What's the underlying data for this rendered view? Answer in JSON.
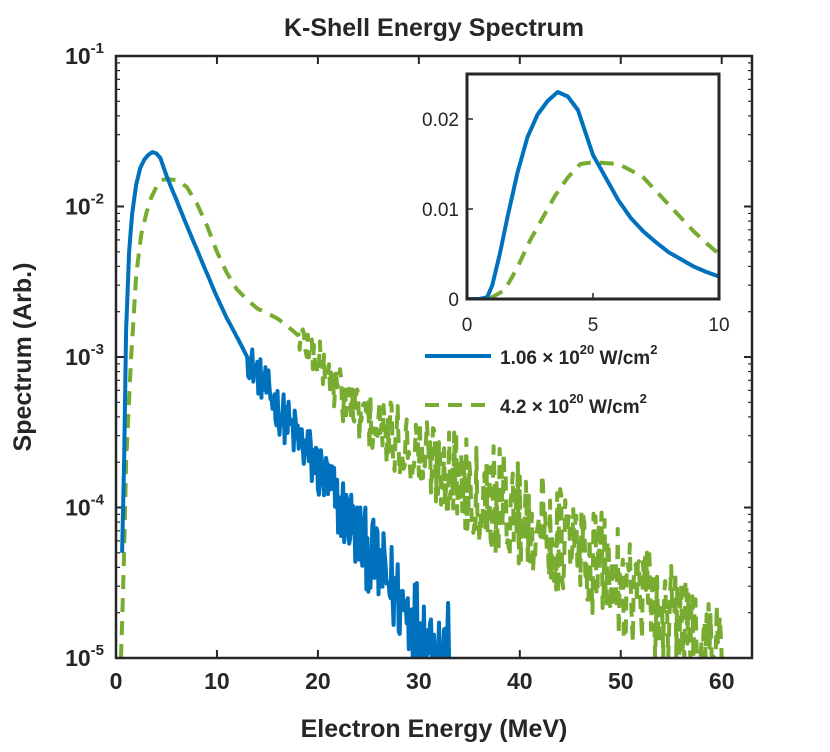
{
  "chart_data": [
    {
      "type": "line",
      "title": "K-Shell Energy Spectrum",
      "xlabel": "Electron Energy (MeV)",
      "ylabel": "Spectrum (Arb.)",
      "yscale": "log",
      "xlim": [
        0,
        63
      ],
      "ylim": [
        1e-05,
        0.1
      ],
      "xticks": [
        0,
        10,
        20,
        30,
        40,
        50,
        60
      ],
      "xtick_labels": [
        "0",
        "10",
        "20",
        "30",
        "40",
        "50",
        "60"
      ],
      "ytick_labels": [
        {
          "base": "10",
          "exp": "-1"
        },
        {
          "base": "10",
          "exp": "-2"
        },
        {
          "base": "10",
          "exp": "-3"
        },
        {
          "base": "10",
          "exp": "-4"
        },
        {
          "base": "10",
          "exp": "-5"
        }
      ],
      "ytick_values": [
        0.1,
        0.01,
        0.001,
        0.0001,
        1e-05
      ],
      "legend_position": "top-right",
      "series": [
        {
          "name": "1.06 × 10^20 W/cm^2",
          "legend_parts": {
            "prefix": "1.06 × 10",
            "exp1": "20",
            "mid": " W/cm",
            "exp2": "2"
          },
          "color": "#0072BD",
          "style": "solid",
          "x": [
            0.6,
            0.8,
            1.0,
            1.3,
            1.6,
            2.0,
            2.4,
            2.8,
            3.2,
            3.6,
            4.0,
            4.4,
            5.0,
            6.0,
            7.0,
            8.0,
            9.0,
            10.0,
            11.0,
            12.0,
            13.0,
            14.0,
            15.0,
            16.0,
            17.0,
            18.0,
            19.0,
            20.0,
            21.0,
            22.0,
            23.0,
            24.0,
            25.0,
            26.0,
            27.0,
            28.0,
            29.0,
            30.0,
            31.0,
            32.0,
            33.0
          ],
          "y": [
            5e-05,
            0.0002,
            0.0015,
            0.005,
            0.009,
            0.014,
            0.018,
            0.0205,
            0.022,
            0.023,
            0.0225,
            0.021,
            0.016,
            0.011,
            0.0075,
            0.0052,
            0.0036,
            0.0025,
            0.0018,
            0.00135,
            0.001,
            0.00078,
            0.0006,
            0.00046,
            0.00036,
            0.00029,
            0.00023,
            0.00018,
            0.00014,
            0.000105,
            8.5e-05,
            6.5e-05,
            5e-05,
            4e-05,
            3.2e-05,
            2.5e-05,
            2e-05,
            1.6e-05,
            1.3e-05,
            1.1e-05,
            1e-05
          ],
          "noise_start": 13
        },
        {
          "name": "4.2 × 10^20 W/cm^2",
          "legend_parts": {
            "prefix": "4.2 × 10",
            "exp1": "20",
            "mid": " W/cm",
            "exp2": "2"
          },
          "color": "#77AC30",
          "style": "dashed",
          "x": [
            0.5,
            0.8,
            1.0,
            1.5,
            2.0,
            2.5,
            3.0,
            3.5,
            4.0,
            4.5,
            5.0,
            6.0,
            7.0,
            8.0,
            9.0,
            10.0,
            11.0,
            12.0,
            13.0,
            14.0,
            15.0,
            16.0,
            17.0,
            18.0,
            19.0,
            20.0,
            22.0,
            24.0,
            26.0,
            28.0,
            30.0,
            32.0,
            34.0,
            36.0,
            38.0,
            40.0,
            42.0,
            44.0,
            46.0,
            48.0,
            50.0,
            52.0,
            54.0,
            56.0,
            58.0,
            60.0
          ],
          "y": [
            1e-05,
            5e-05,
            0.0002,
            0.001,
            0.0035,
            0.0065,
            0.009,
            0.0115,
            0.0135,
            0.015,
            0.0152,
            0.015,
            0.0135,
            0.0105,
            0.0075,
            0.005,
            0.0036,
            0.0028,
            0.0024,
            0.0021,
            0.00195,
            0.0018,
            0.0016,
            0.0014,
            0.0012,
            0.00095,
            0.0006,
            0.00042,
            0.00033,
            0.00027,
            0.00023,
            0.00019,
            0.00016,
            0.00013,
            0.00011,
            9e-05,
            7.5e-05,
            6e-05,
            5e-05,
            4e-05,
            3.2e-05,
            2.6e-05,
            2e-05,
            1.6e-05,
            1.3e-05,
            1e-05
          ],
          "noise_start": 18
        }
      ]
    },
    {
      "type": "line",
      "title": "",
      "xlabel": "",
      "ylabel": "",
      "yscale": "linear",
      "xlim": [
        0,
        10
      ],
      "ylim": [
        0,
        0.025
      ],
      "xticks": [
        0,
        5,
        10
      ],
      "xtick_labels": [
        "0",
        "5",
        "10"
      ],
      "yticks": [
        0,
        0.01,
        0.02
      ],
      "ytick_labels": [
        "0",
        "0.01",
        "0.02"
      ],
      "series": [
        {
          "name": "1.06 × 10^20 W/cm^2",
          "color": "#0072BD",
          "style": "solid",
          "x": [
            0.0,
            0.5,
            0.8,
            1.0,
            1.3,
            1.6,
            2.0,
            2.4,
            2.8,
            3.2,
            3.6,
            4.0,
            4.4,
            5.0,
            5.5,
            6.0,
            6.5,
            7.0,
            7.5,
            8.0,
            8.5,
            9.0,
            9.5,
            10.0
          ],
          "y": [
            0.0,
            0.0,
            0.0002,
            0.0015,
            0.005,
            0.009,
            0.014,
            0.018,
            0.0205,
            0.022,
            0.023,
            0.0225,
            0.021,
            0.016,
            0.0135,
            0.011,
            0.009,
            0.0075,
            0.0063,
            0.0052,
            0.0044,
            0.0036,
            0.003,
            0.0025
          ]
        },
        {
          "name": "4.2 × 10^20 W/cm^2",
          "color": "#77AC30",
          "style": "dashed",
          "x": [
            0.0,
            0.5,
            0.8,
            1.0,
            1.5,
            2.0,
            2.5,
            3.0,
            3.5,
            4.0,
            4.5,
            5.0,
            5.5,
            6.0,
            6.5,
            7.0,
            7.5,
            8.0,
            8.5,
            9.0,
            9.5,
            10.0
          ],
          "y": [
            0.0,
            0.0,
            5e-05,
            0.0002,
            0.001,
            0.0035,
            0.0065,
            0.009,
            0.0115,
            0.0135,
            0.015,
            0.0152,
            0.0151,
            0.015,
            0.0143,
            0.0135,
            0.012,
            0.0105,
            0.009,
            0.0075,
            0.0062,
            0.005
          ]
        }
      ]
    }
  ]
}
